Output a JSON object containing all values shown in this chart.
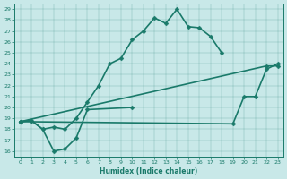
{
  "xlabel": "Humidex (Indice chaleur)",
  "bg_color": "#c8e8e8",
  "line_color": "#1a7a6a",
  "xlim": [
    -0.5,
    23.5
  ],
  "ylim": [
    15.5,
    29.5
  ],
  "xticks": [
    0,
    1,
    2,
    3,
    4,
    5,
    6,
    7,
    8,
    9,
    10,
    11,
    12,
    13,
    14,
    15,
    16,
    17,
    18,
    19,
    20,
    21,
    22,
    23
  ],
  "yticks": [
    16,
    17,
    18,
    19,
    20,
    21,
    22,
    23,
    24,
    25,
    26,
    27,
    28,
    29
  ],
  "lines": [
    {
      "x": [
        0,
        1,
        2,
        3,
        4,
        5,
        6,
        7,
        8,
        9,
        10,
        11,
        12,
        13,
        14,
        15,
        16,
        17,
        18
      ],
      "y": [
        18.7,
        18.8,
        18.0,
        18.2,
        18.0,
        19.0,
        20.5,
        22.0,
        24.0,
        24.5,
        26.2,
        27.0,
        28.2,
        27.7,
        29.0,
        27.4,
        27.3,
        26.5,
        25.0
      ]
    },
    {
      "x": [
        0,
        1,
        2,
        3,
        4,
        5,
        6,
        10
      ],
      "y": [
        18.7,
        18.8,
        18.0,
        16.0,
        16.2,
        17.2,
        19.8,
        20.0
      ]
    },
    {
      "x": [
        0,
        22,
        23
      ],
      "y": [
        18.7,
        23.8,
        23.8
      ]
    },
    {
      "x": [
        0,
        19,
        20,
        21,
        22,
        23
      ],
      "y": [
        18.7,
        18.5,
        21.0,
        21.0,
        23.5,
        24.0
      ]
    }
  ]
}
